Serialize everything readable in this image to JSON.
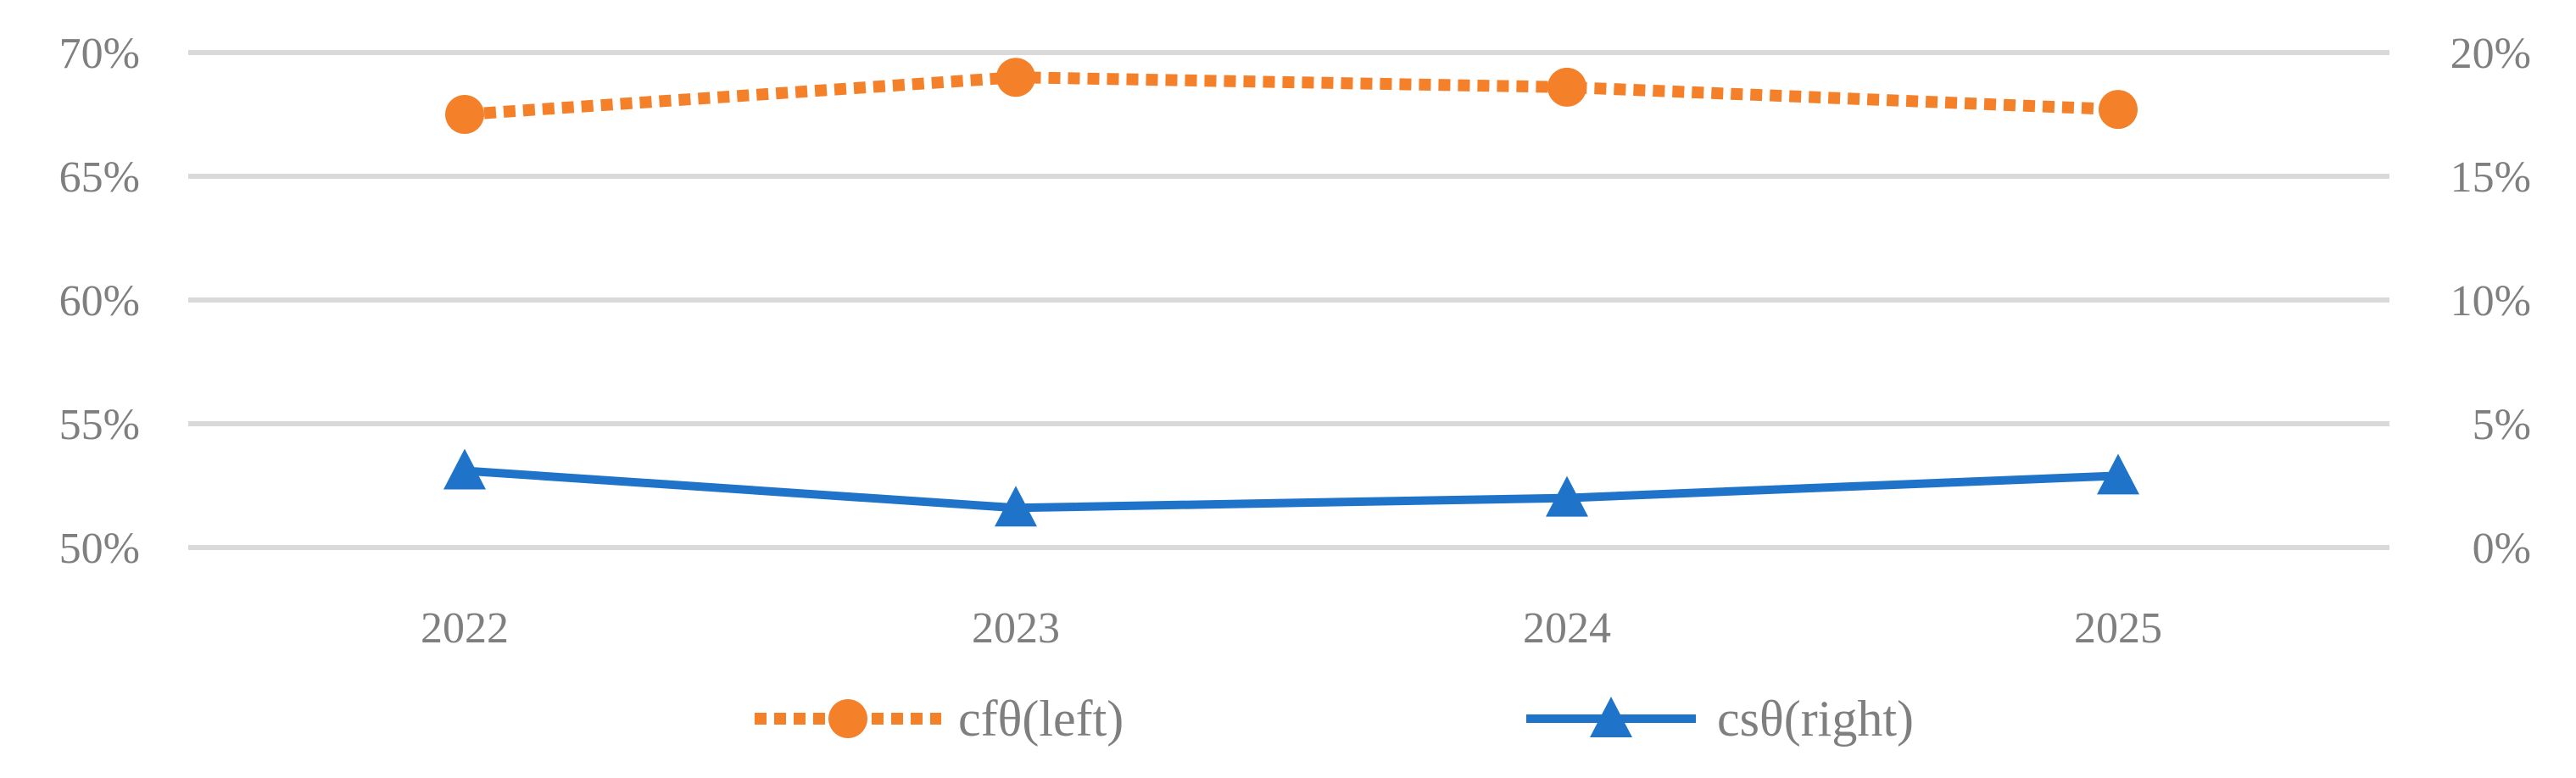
{
  "chart_data": {
    "type": "line",
    "title": "",
    "categories": [
      "2022",
      "2023",
      "2024",
      "2025"
    ],
    "y_left": {
      "range": [
        0.5,
        0.7
      ],
      "ticks": [
        0.5,
        0.55,
        0.6,
        0.65,
        0.7
      ],
      "tick_labels": [
        "50%",
        "55%",
        "60%",
        "65%",
        "70%"
      ]
    },
    "y_right": {
      "range": [
        0.0,
        0.2
      ],
      "ticks": [
        0.0,
        0.05,
        0.1,
        0.15,
        0.2
      ],
      "tick_labels": [
        "0%",
        "5%",
        "10%",
        "15%",
        "20%"
      ]
    },
    "grid": true,
    "legend_position": "bottom",
    "series": [
      {
        "name": "cfθ(left)",
        "axis": "left",
        "values": [
          0.675,
          0.69,
          0.686,
          0.677
        ],
        "color": "#f4812a",
        "line_style": "dotted",
        "marker": "circle"
      },
      {
        "name": "csθ(right)",
        "axis": "right",
        "values": [
          0.031,
          0.016,
          0.02,
          0.029
        ],
        "color": "#1f74c9",
        "line_style": "solid",
        "marker": "triangle"
      }
    ]
  }
}
